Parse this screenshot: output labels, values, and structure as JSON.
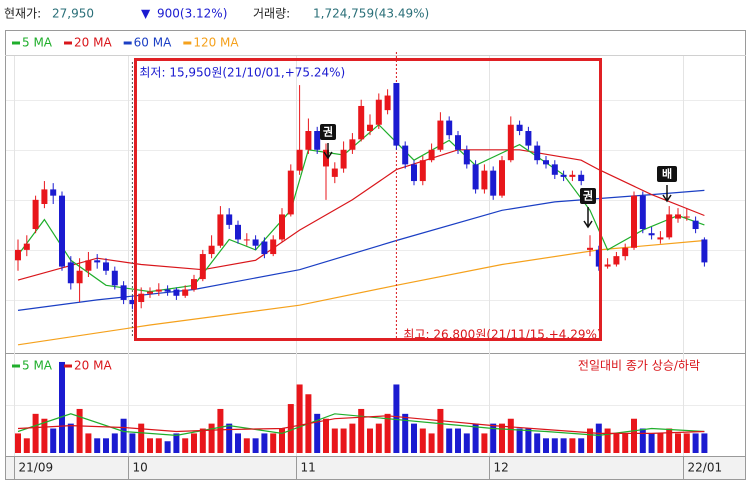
{
  "header": {
    "price_label": "현재가:",
    "price": "27,950",
    "change_arrow": "▼",
    "change": "900(3.12%)",
    "volume_label": "거래량:",
    "volume": "1,724,759(43.49%)"
  },
  "chart_data": [
    {
      "type": "candlestick",
      "categories": [
        "21/09",
        null,
        null,
        null,
        null,
        null,
        null,
        null,
        null,
        null,
        null,
        null,
        null,
        "10",
        null,
        null,
        null,
        null,
        null,
        null,
        null,
        null,
        null,
        null,
        null,
        null,
        null,
        null,
        null,
        null,
        null,
        null,
        "11",
        null,
        null,
        null,
        null,
        null,
        null,
        null,
        null,
        null,
        null,
        null,
        null,
        null,
        null,
        null,
        null,
        null,
        null,
        null,
        null,
        null,
        "12",
        null,
        null,
        null,
        null,
        null,
        null,
        null,
        null,
        null,
        null,
        null,
        null,
        null,
        null,
        null,
        null,
        null,
        null,
        null,
        null,
        null,
        "22/01",
        null,
        null
      ],
      "open": [
        18300,
        18800,
        19800,
        21000,
        21700,
        21400,
        18200,
        17200,
        17800,
        18300,
        18200,
        17800,
        17100,
        16400,
        16300,
        16700,
        16800,
        16900,
        16900,
        16600,
        16900,
        17400,
        18600,
        19000,
        20500,
        20000,
        19300,
        19300,
        19200,
        18600,
        19300,
        20500,
        22600,
        23600,
        24500,
        22800,
        22300,
        22700,
        23600,
        24100,
        24500,
        24800,
        25500,
        26800,
        23800,
        22900,
        22100,
        23100,
        23600,
        25000,
        24300,
        23600,
        22900,
        21700,
        22600,
        21400,
        23100,
        24800,
        24500,
        23800,
        23100,
        22900,
        22400,
        22300,
        22400,
        18800,
        18800,
        18000,
        18100,
        18500,
        18900,
        21400,
        19600,
        19300,
        19400,
        20300,
        20400,
        20200,
        19300
      ],
      "high": [
        19300,
        19500,
        21400,
        22100,
        22000,
        21600,
        18500,
        18400,
        18700,
        18600,
        18400,
        18000,
        17300,
        16600,
        17000,
        17000,
        17200,
        17100,
        17000,
        17100,
        17600,
        18800,
        19500,
        20900,
        20800,
        20200,
        19600,
        19500,
        19400,
        19500,
        20800,
        22900,
        26700,
        25100,
        24700,
        23900,
        23000,
        24000,
        24400,
        26000,
        25300,
        26300,
        26500,
        26800,
        24000,
        23100,
        23300,
        23900,
        25400,
        25200,
        24500,
        23800,
        23100,
        22900,
        22800,
        23300,
        25200,
        25000,
        24700,
        24000,
        23300,
        23100,
        22600,
        22600,
        22600,
        19500,
        19000,
        18400,
        18700,
        19100,
        21600,
        21600,
        19900,
        19700,
        20900,
        20800,
        20800,
        20400,
        19400
      ],
      "low": [
        17800,
        18500,
        19600,
        20800,
        21000,
        17800,
        16900,
        16300,
        17500,
        17900,
        17600,
        16900,
        16200,
        15950,
        16000,
        16500,
        16600,
        16600,
        16400,
        16500,
        16800,
        17300,
        18400,
        18900,
        19800,
        19100,
        19000,
        18800,
        18400,
        18500,
        19200,
        20400,
        22400,
        23400,
        23400,
        21200,
        22000,
        22500,
        23400,
        24000,
        24300,
        24600,
        25300,
        23600,
        22700,
        21900,
        21900,
        23000,
        23500,
        24100,
        23400,
        22700,
        21500,
        21500,
        21200,
        21300,
        23000,
        24300,
        23600,
        22900,
        22700,
        22200,
        22100,
        22100,
        21900,
        18500,
        17800,
        17900,
        18000,
        18300,
        18800,
        19600,
        19300,
        19100,
        19300,
        20100,
        20200,
        19600,
        18000
      ],
      "close": [
        18800,
        19100,
        21200,
        21700,
        21400,
        18000,
        17200,
        17800,
        18300,
        18200,
        17800,
        17100,
        16400,
        16200,
        16700,
        16800,
        16900,
        16800,
        16600,
        16900,
        17400,
        18600,
        19000,
        20500,
        20000,
        19300,
        19300,
        19000,
        18600,
        19300,
        20500,
        22600,
        23600,
        24500,
        23600,
        23600,
        22700,
        23600,
        24100,
        25700,
        24800,
        26000,
        26200,
        23800,
        22900,
        22100,
        23100,
        23600,
        25000,
        24300,
        23600,
        22900,
        21700,
        22600,
        21400,
        23100,
        24800,
        24500,
        23800,
        23100,
        22900,
        22400,
        22300,
        22400,
        22100,
        18900,
        18000,
        18100,
        18500,
        18900,
        21400,
        19800,
        19500,
        19400,
        20500,
        20500,
        20400,
        19800,
        18200
      ],
      "up_color": "#e8161b",
      "down_color": "#1b1bd0",
      "ylim": [
        14000,
        28000
      ],
      "series": [
        {
          "name": "5 MA",
          "color": "#1fae2b",
          "x": [
            0,
            3,
            6,
            10,
            15,
            20,
            24,
            27,
            31,
            33,
            37,
            41,
            45,
            49,
            52,
            57,
            62,
            65,
            67,
            71,
            75,
            78
          ],
          "values": [
            18550,
            20250,
            18300,
            17100,
            16800,
            17100,
            19300,
            18800,
            20700,
            23600,
            23350,
            24800,
            23100,
            24050,
            22850,
            23850,
            22400,
            20700,
            18800,
            19750,
            20450,
            20000
          ]
        },
        {
          "name": "20 MA",
          "color": "#d9161b",
          "x": [
            0,
            9,
            14,
            21,
            27,
            32,
            38,
            43,
            50,
            57,
            64,
            66,
            72,
            78
          ],
          "values": [
            17350,
            18400,
            18100,
            17850,
            18300,
            19750,
            21200,
            22650,
            23600,
            23600,
            23100,
            22650,
            21450,
            20450
          ]
        },
        {
          "name": "60 MA",
          "color": "#1b3fc4",
          "x": [
            0,
            9,
            20,
            32,
            43,
            55,
            61,
            72,
            78
          ],
          "values": [
            15900,
            16400,
            16900,
            17850,
            19250,
            20700,
            21100,
            21450,
            21650
          ]
        },
        {
          "name": "120 MA",
          "color": "#f5a11c",
          "x": [
            0,
            15,
            32,
            43,
            55,
            66,
            78
          ],
          "values": [
            14250,
            15200,
            16150,
            17100,
            18100,
            18800,
            19250
          ]
        }
      ],
      "annotations": {
        "low": "최저: 15,950원(21/10/01,+75.24%)",
        "high": "최고: 26,800원(21/11/15,+4.29%)"
      },
      "markers": [
        "권",
        "권",
        "배"
      ]
    },
    {
      "type": "bar",
      "title": "전일대비 종가 상승/하락",
      "values": [
        400000,
        300000,
        800000,
        700000,
        500000,
        1860000,
        600000,
        900000,
        400000,
        300000,
        300000,
        400000,
        700000,
        400000,
        600000,
        300000,
        300000,
        240000,
        400000,
        300000,
        400000,
        500000,
        600000,
        900000,
        600000,
        400000,
        300000,
        300000,
        400000,
        400000,
        500000,
        1000000,
        1400000,
        1200000,
        800000,
        700000,
        500000,
        500000,
        600000,
        900000,
        500000,
        600000,
        800000,
        1400000,
        800000,
        600000,
        500000,
        400000,
        900000,
        500000,
        500000,
        400000,
        600000,
        400000,
        600000,
        600000,
        700000,
        500000,
        500000,
        400000,
        300000,
        300000,
        300000,
        300000,
        300000,
        500000,
        600000,
        500000,
        400000,
        400000,
        700000,
        500000,
        400000,
        400000,
        500000,
        400000,
        400000,
        400000,
        400000
      ],
      "ylim": [
        0,
        1900000
      ],
      "series": [
        {
          "name": "5 MA",
          "color": "#1fae2b",
          "x": [
            0,
            6,
            12,
            18,
            24,
            30,
            36,
            42,
            48,
            54,
            60,
            66,
            72,
            78
          ],
          "values": [
            440000,
            800000,
            440000,
            360000,
            560000,
            400000,
            800000,
            700000,
            600000,
            500000,
            440000,
            360000,
            500000,
            440000
          ]
        },
        {
          "name": "20 MA",
          "color": "#d9161b",
          "x": [
            0,
            6,
            12,
            18,
            24,
            30,
            36,
            42,
            48,
            54,
            60,
            66,
            72,
            78
          ],
          "values": [
            500000,
            560000,
            520000,
            440000,
            480000,
            500000,
            700000,
            760000,
            660000,
            560000,
            480000,
            400000,
            400000,
            440000
          ]
        }
      ]
    }
  ]
}
